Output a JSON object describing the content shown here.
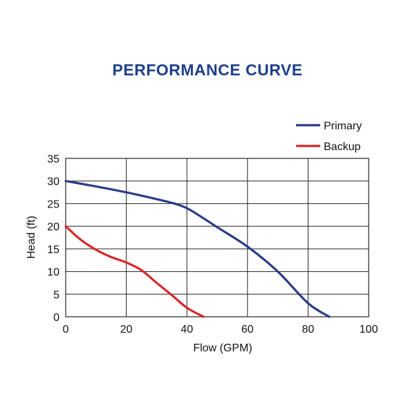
{
  "colors": {
    "title": "#1f3f8c",
    "primary": "#2a3b87",
    "backup": "#d8262a",
    "grid": "#222222",
    "text": "#111111"
  },
  "chart_data": {
    "type": "line",
    "title": "PERFORMANCE CURVE",
    "xlabel": "Flow (GPM)",
    "ylabel": "Head (ft)",
    "xlim": [
      0,
      100
    ],
    "ylim": [
      0,
      35
    ],
    "xticks": [
      0,
      20,
      40,
      60,
      80,
      100
    ],
    "yticks": [
      0,
      5,
      10,
      15,
      20,
      25,
      30,
      35
    ],
    "grid": true,
    "legend_position": "top-right",
    "series": [
      {
        "name": "Primary",
        "color": "#2a3b87",
        "x": [
          0,
          10,
          20,
          30,
          36,
          40,
          44,
          50,
          60,
          70,
          80,
          87
        ],
        "y": [
          30,
          28.8,
          27.5,
          26,
          25,
          24,
          22.4,
          19.8,
          15.5,
          10,
          3,
          0
        ]
      },
      {
        "name": "Backup",
        "color": "#d8262a",
        "x": [
          0,
          5,
          10,
          15,
          20,
          25,
          30,
          35,
          40,
          45.5
        ],
        "y": [
          20,
          17,
          14.8,
          13.2,
          12,
          10.3,
          7.5,
          4.8,
          2,
          0
        ]
      }
    ]
  }
}
